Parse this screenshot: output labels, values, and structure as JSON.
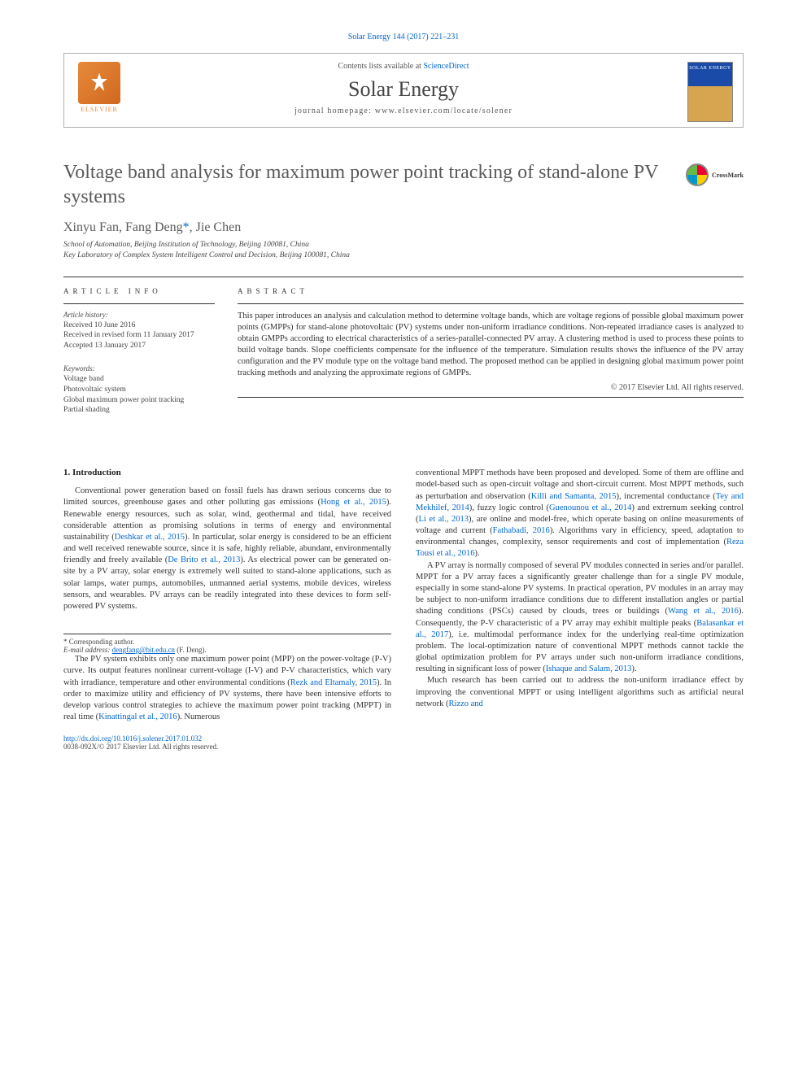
{
  "page_header_ref": "Solar Energy 144 (2017) 221–231",
  "publisher": {
    "contents_line_prefix": "Contents lists available at ",
    "contents_link": "ScienceDirect",
    "journal_name": "Solar Energy",
    "homepage_label": "journal homepage: www.elsevier.com/locate/solener",
    "elsevier_label": "ELSEVIER",
    "cover_title": "SOLAR ENERGY"
  },
  "article": {
    "title": "Voltage band analysis for maximum power point tracking of stand-alone PV systems",
    "crossmark_label": "CrossMark",
    "authors_html": "Xinyu Fan, Fang Deng",
    "corr_marker": "*",
    "authors_tail": ", Jie Chen",
    "affiliations": [
      "School of Automation, Beijing Institution of Technology, Beijing 100081, China",
      "Key Laboratory of Complex System Intelligent Control and Decision, Beijing 100081, China"
    ]
  },
  "article_info": {
    "heading": "ARTICLE INFO",
    "history_label": "Article history:",
    "history": [
      "Received 10 June 2016",
      "Received in revised form 11 January 2017",
      "Accepted 13 January 2017"
    ],
    "keywords_label": "Keywords:",
    "keywords": [
      "Voltage band",
      "Photovoltaic system",
      "Global maximum power point tracking",
      "Partial shading"
    ]
  },
  "abstract": {
    "heading": "ABSTRACT",
    "text": "This paper introduces an analysis and calculation method to determine voltage bands, which are voltage regions of possible global maximum power points (GMPPs) for stand-alone photovoltaic (PV) systems under non-uniform irradiance conditions. Non-repeated irradiance cases is analyzed to obtain GMPPs according to electrical characteristics of a series-parallel-connected PV array. A clustering method is used to process these points to build voltage bands. Slope coefficients compensate for the influence of the temperature. Simulation results shows the influence of the PV array configuration and the PV module type on the voltage band method. The proposed method can be applied in designing global maximum power point tracking methods and analyzing the approximate regions of GMPPs.",
    "copyright": "© 2017 Elsevier Ltd. All rights reserved."
  },
  "body": {
    "section_heading": "1. Introduction",
    "col1": [
      {
        "text": "Conventional power generation based on fossil fuels has drawn serious concerns due to limited sources, greenhouse gases and other polluting gas emissions (",
        "cite": "Hong et al., 2015",
        "tail": "). Renewable energy resources, such as solar, wind, geothermal and tidal, have received considerable attention as promising solutions in terms of energy and environmental sustainability ("
      },
      {
        "cite": "Deshkar et al., 2015",
        "tail": "). In particular, solar energy is considered to be an efficient and well received renewable source, since it is safe, highly reliable, abundant, environmentally friendly and freely available ("
      },
      {
        "cite": "De Brito et al., 2013",
        "tail": "). As electrical power can be generated on-site by a PV array, solar energy is extremely well suited to stand-alone applications, such as solar lamps, water pumps, automobiles, unmanned aerial systems, mobile devices, wireless sensors, and wearables. PV arrays can be readily integrated into these devices to form self-powered PV systems."
      },
      {
        "newpara": true,
        "text": "The PV system exhibits only one maximum power point (MPP) on the power-voltage (P-V) curve. Its output features nonlinear current-voltage (I-V) and P-V characteristics, which vary with irradiance, temperature and other environmental conditions (",
        "cite": "Rezk and Eltamaly, 2015",
        "tail": "). In order to maximize utility and efficiency of PV systems, there have been intensive efforts to develop various control strategies to achieve the maximum power point tracking (MPPT) in real time ("
      },
      {
        "cite": "Kinattingal et al., 2016",
        "tail": "). Numerous"
      }
    ],
    "col2": [
      {
        "text": "conventional MPPT methods have been proposed and developed. Some of them are offline and model-based such as open-circuit voltage and short-circuit current. Most MPPT methods, such as perturbation and observation (",
        "cite": "Killi and Samanta, 2015",
        "tail": "), incremental conductance ("
      },
      {
        "cite": "Tey and Mekhilef, 2014",
        "tail": "), fuzzy logic control ("
      },
      {
        "cite": "Guenounou et al., 2014",
        "tail": ") and extremum seeking control ("
      },
      {
        "cite": "Li et al., 2013",
        "tail": "), are online and model-free, which operate basing on online measurements of voltage and current ("
      },
      {
        "cite": "Fathabadi, 2016",
        "tail": "). Algorithms vary in efficiency, speed, adaptation to environmental changes, complexity, sensor requirements and cost of implementation ("
      },
      {
        "cite": "Reza Tousi et al., 2016",
        "tail": ")."
      },
      {
        "newpara": true,
        "text": "A PV array is normally composed of several PV modules connected in series and/or parallel. MPPT for a PV array faces a significantly greater challenge than for a single PV module, especially in some stand-alone PV systems. In practical operation, PV modules in an array may be subject to non-uniform irradiance conditions due to different installation angles or partial shading conditions (PSCs) caused by clouds, trees or buildings (",
        "cite": "Wang et al., 2016",
        "tail": "). Consequently, the P-V characteristic of a PV array may exhibit multiple peaks ("
      },
      {
        "cite": "Balasankar et al., 2017",
        "tail": "), i.e. multimodal performance index for the underlying real-time optimization problem. The local-optimization nature of conventional MPPT methods cannot tackle the global optimization problem for PV arrays under such non-uniform irradiance conditions, resulting in significant loss of power ("
      },
      {
        "cite": "Ishaque and Salam, 2013",
        "tail": ")."
      },
      {
        "newpara": true,
        "text": "Much research has been carried out to address the non-uniform irradiance effect by improving the conventional MPPT or using intelligent algorithms such as artificial neural network (",
        "cite": "Rizzo and",
        "tail": ""
      }
    ]
  },
  "footer": {
    "corr_label": "* Corresponding author.",
    "email_label": "E-mail address:",
    "email": "dengfang@bit.edu.cn",
    "email_who": "(F. Deng).",
    "doi": "http://dx.doi.org/10.1016/j.solener.2017.01.032",
    "issn_line": "0038-092X/© 2017 Elsevier Ltd. All rights reserved."
  },
  "colors": {
    "link": "#0066cc",
    "text": "#333333",
    "heading_gray": "#5a5a5a",
    "elsevier_orange": "#e78a3a"
  }
}
